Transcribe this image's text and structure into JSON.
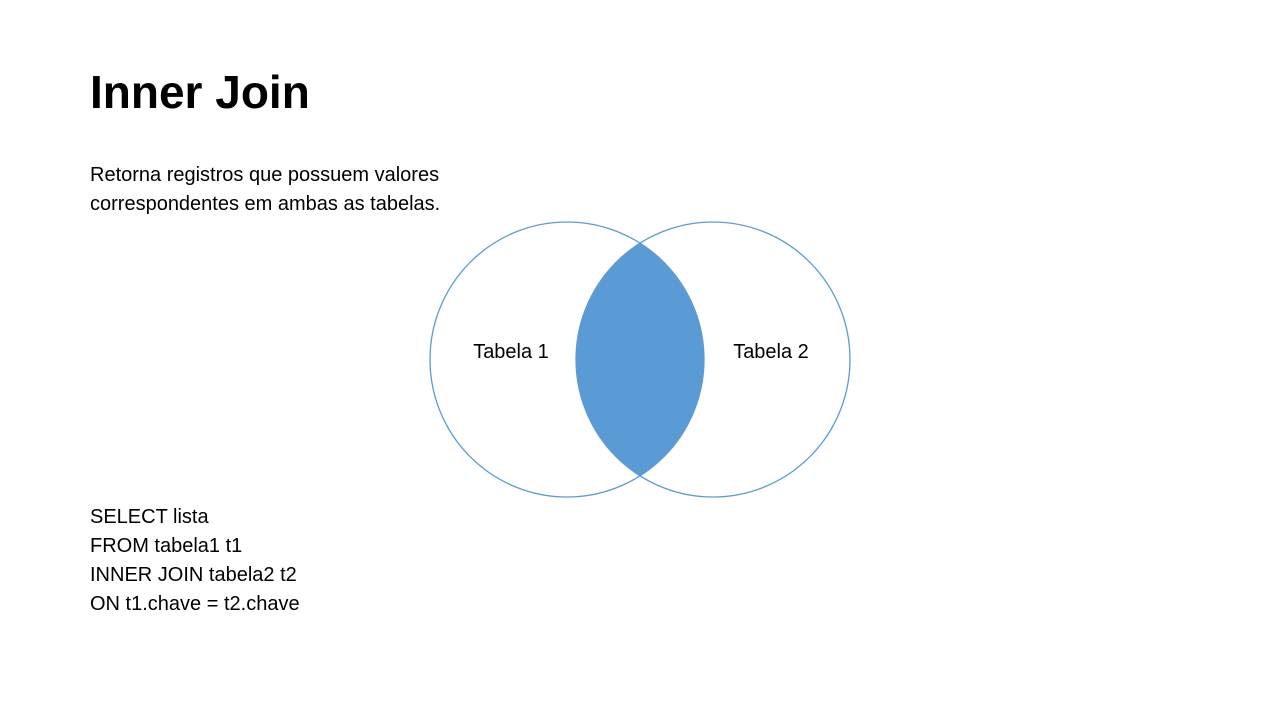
{
  "slide": {
    "title": "Inner Join",
    "description_lines": [
      "Retorna registros que possuem valores",
      "correspondentes em ambas as tabelas."
    ]
  },
  "venn": {
    "left_label": "Tabela 1",
    "right_label": "Tabela 2",
    "outline_color": "#5b9bd5",
    "intersection_color": "#5b9bd5",
    "highlighted_region": "intersection"
  },
  "sql": {
    "lines": [
      "SELECT lista",
      "FROM tabela1 t1",
      "INNER JOIN tabela2 t2",
      "ON t1.chave = t2.chave"
    ]
  }
}
